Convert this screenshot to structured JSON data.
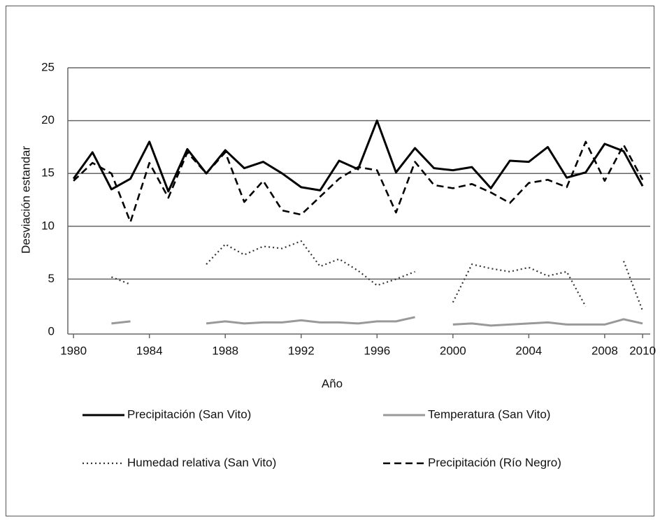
{
  "chart_data": {
    "type": "line",
    "x_label": "Año",
    "y_label": "Desviación estandar",
    "x": [
      1980,
      1981,
      1982,
      1983,
      1984,
      1985,
      1986,
      1987,
      1988,
      1989,
      1990,
      1991,
      1992,
      1993,
      1994,
      1995,
      1996,
      1997,
      1998,
      1999,
      2000,
      2001,
      2002,
      2003,
      2004,
      2005,
      2006,
      2007,
      2008,
      2009,
      2010
    ],
    "xlim": [
      1979.7,
      2010.4
    ],
    "xticks": [
      1980,
      1984,
      1988,
      1992,
      1996,
      2000,
      2004,
      2008,
      2010
    ],
    "ylim": [
      0,
      25
    ],
    "yticks": [
      0,
      5,
      10,
      15,
      20,
      25
    ],
    "grid": true,
    "series": [
      {
        "name": "Precipitación (San Vito)",
        "color": "#000000",
        "dash": "solid",
        "values": [
          14.5,
          17,
          13.5,
          14.5,
          18,
          13.3,
          17.3,
          15,
          17.2,
          15.5,
          16.1,
          15,
          13.7,
          13.4,
          16.2,
          15.4,
          20,
          15.1,
          17.4,
          15.5,
          15.3,
          15.6,
          13.6,
          16.2,
          16.1,
          17.5,
          14.6,
          15.1,
          17.8,
          17.1,
          13.8
        ]
      },
      {
        "name": "Temperatura (San Vito)",
        "color": "#999999",
        "dash": "solid",
        "values": [
          null,
          null,
          0.8,
          1.0,
          null,
          null,
          null,
          0.8,
          1.0,
          0.8,
          0.9,
          0.9,
          1.1,
          0.9,
          0.9,
          0.8,
          1.0,
          1.0,
          1.4,
          null,
          0.7,
          0.8,
          0.6,
          0.7,
          0.8,
          0.9,
          0.7,
          0.7,
          0.7,
          1.2,
          0.8
        ]
      },
      {
        "name": "Humedad relativa (San Vito)",
        "color": "#333333",
        "dash": "dotted",
        "values": [
          null,
          null,
          5.2,
          4.5,
          null,
          null,
          null,
          6.4,
          8.3,
          7.3,
          8.1,
          7.9,
          8.6,
          6.2,
          6.9,
          5.8,
          4.4,
          5.0,
          5.7,
          null,
          2.8,
          6.4,
          6.0,
          5.7,
          6.1,
          5.3,
          5.7,
          2.4,
          null,
          6.7,
          2.0
        ]
      },
      {
        "name": "Precipitación (Río Negro)",
        "color": "#000000",
        "dash": "dashed",
        "values": [
          14.3,
          16,
          15,
          10.4,
          16,
          12.7,
          17,
          15,
          17,
          12.3,
          14.3,
          11.5,
          11.1,
          12.8,
          14.5,
          15.6,
          15.3,
          11.3,
          16.1,
          13.9,
          13.6,
          14,
          13.2,
          12.2,
          14.1,
          14.4,
          13.7,
          18,
          14.3,
          17.7,
          14.4
        ]
      }
    ]
  }
}
